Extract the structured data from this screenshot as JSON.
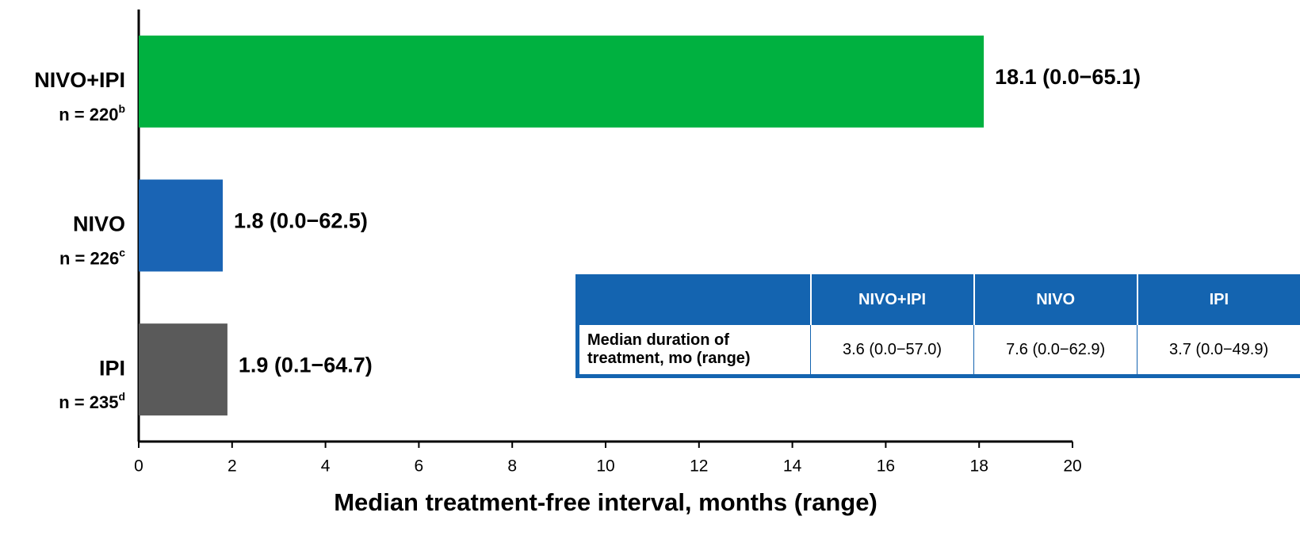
{
  "chart_data": {
    "type": "bar",
    "orientation": "horizontal",
    "categories": [
      "NIVO+IPI",
      "NIVO",
      "IPI"
    ],
    "category_sublabels": [
      "n = 220",
      "n = 226",
      "n = 235"
    ],
    "category_footnotes": [
      "b",
      "c",
      "d"
    ],
    "values": [
      18.1,
      1.8,
      1.9
    ],
    "value_labels": [
      "18.1 (0.0−65.1)",
      "1.8 (0.0−62.5)",
      "1.9 (0.1−64.7)"
    ],
    "colors": [
      "#00b140",
      "#1a64b4",
      "#5a5a5a"
    ],
    "x_label": "Median treatment-free interval, months (range)",
    "xlim": [
      0,
      20
    ],
    "xticks": [
      0,
      2,
      4,
      6,
      8,
      10,
      12,
      14,
      16,
      18,
      20
    ],
    "table": {
      "columns": [
        "NIVO+IPI",
        "NIVO",
        "IPI"
      ],
      "row_label": "Median duration of treatment, mo (range)",
      "cells": [
        "3.6 (0.0−57.0)",
        "7.6 (0.0−62.9)",
        "3.7 (0.0−49.9)"
      ]
    }
  }
}
